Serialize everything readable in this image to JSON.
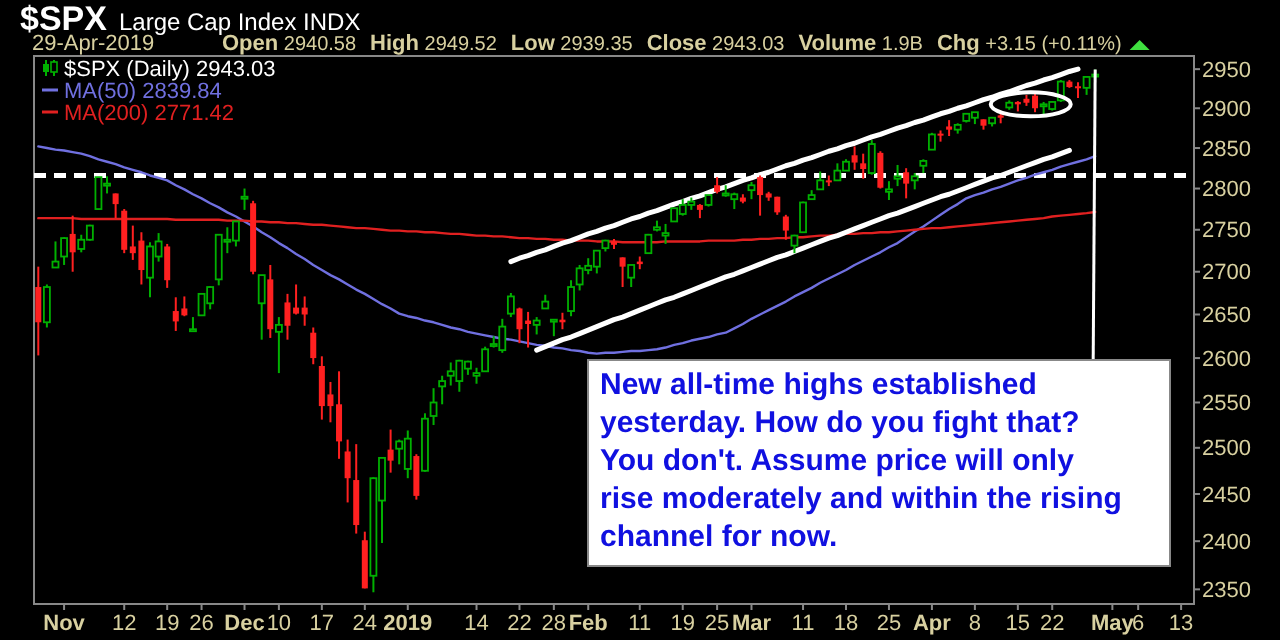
{
  "chart_data": {
    "type": "candlestick",
    "title": "$SPX",
    "subtitle": "Large Cap Index INDX",
    "annotations": [
      "29-Apr-2019",
      "Open 2940.58",
      "High 2949.52",
      "Low 2939.35",
      "Close 2943.03",
      "Volume 1.9B",
      "Chg +3.15 (+0.11%)",
      "New all-time highs established yesterday. How do you fight that? You don't. Assume price will only rise moderately and within the rising channel for now."
    ],
    "log": true,
    "legend": "top left",
    "grid": false,
    "categories": [
      null,
      null,
      null,
      "Nov",
      null,
      null,
      null,
      null,
      null,
      null,
      "12",
      null,
      null,
      null,
      null,
      "19",
      null,
      null,
      null,
      "26",
      null,
      null,
      null,
      null,
      "Dec",
      null,
      null,
      null,
      "10",
      null,
      null,
      null,
      null,
      "17",
      null,
      null,
      null,
      null,
      "24",
      null,
      null,
      null,
      null,
      "2019",
      null,
      null,
      null,
      null,
      null,
      null,
      null,
      "14",
      null,
      null,
      null,
      null,
      "22",
      null,
      null,
      null,
      "28",
      null,
      null,
      null,
      "Feb",
      null,
      null,
      null,
      null,
      null,
      "11",
      null,
      null,
      null,
      null,
      "19",
      null,
      null,
      null,
      "25",
      null,
      null,
      null,
      "Mar",
      null,
      null,
      null,
      null,
      null,
      "11",
      null,
      null,
      null,
      null,
      "18",
      null,
      null,
      null,
      null,
      "25",
      null,
      null,
      null,
      null,
      "Apr",
      null,
      null,
      null,
      null,
      "8",
      null,
      null,
      null,
      null,
      "15",
      null,
      null,
      null,
      "22",
      null,
      null,
      null,
      null,
      null,
      null,
      "May",
      null,
      null,
      "6",
      null,
      null,
      null,
      null,
      "13",
      null
    ],
    "ylim": [
      2335,
      2967
    ],
    "yticks": [
      2350,
      2400,
      2450,
      2500,
      2550,
      2600,
      2650,
      2700,
      2750,
      2800,
      2850,
      2900,
      2950
    ],
    "ref_lines": [
      {
        "axis": "y",
        "value": 2816,
        "color": "#ffffff",
        "line_style": "dashed"
      }
    ],
    "series": [
      {
        "name": "$SPX (Daily) 2943.03",
        "ohlc": [
          [
            2682,
            2706,
            2603,
            2641
          ],
          [
            2641,
            2685,
            2635,
            2682
          ],
          [
            2705,
            2736,
            2705,
            2712
          ],
          [
            2718,
            2741,
            2708,
            2740
          ],
          [
            2745,
            2767,
            2700,
            2723
          ],
          [
            2727,
            2744,
            2723,
            2738
          ],
          [
            2738,
            2756,
            2737,
            2755
          ],
          [
            2775,
            2814,
            2774,
            2814
          ],
          [
            2806,
            2815,
            2794,
            2806
          ],
          [
            2794,
            2794,
            2764,
            2781
          ],
          [
            2773,
            2775,
            2722,
            2726
          ],
          [
            2730,
            2755,
            2714,
            2722
          ],
          [
            2737,
            2747,
            2685,
            2702
          ],
          [
            2693,
            2735,
            2670,
            2730
          ],
          [
            2718,
            2746,
            2712,
            2736
          ],
          [
            2730,
            2733,
            2681,
            2690
          ],
          [
            2654,
            2670,
            2631,
            2642
          ],
          [
            2657,
            2671,
            2648,
            2649
          ],
          [
            2633,
            2647,
            2631,
            2633
          ],
          [
            2649,
            2675,
            2649,
            2674
          ],
          [
            2663,
            2683,
            2656,
            2682
          ],
          [
            2691,
            2744,
            2684,
            2744
          ],
          [
            2736,
            2753,
            2722,
            2738
          ],
          [
            2737,
            2760,
            2730,
            2760
          ],
          [
            2790,
            2800,
            2774,
            2790
          ],
          [
            2782,
            2785,
            2697,
            2700
          ],
          [
            2663,
            2696,
            2621,
            2696
          ],
          [
            2691,
            2708,
            2623,
            2633
          ],
          [
            2630,
            2647,
            2583,
            2638
          ],
          [
            2664,
            2674,
            2621,
            2637
          ],
          [
            2658,
            2685,
            2650,
            2651
          ],
          [
            2658,
            2671,
            2637,
            2650
          ],
          [
            2629,
            2635,
            2593,
            2600
          ],
          [
            2591,
            2602,
            2531,
            2546
          ],
          [
            2559,
            2573,
            2528,
            2546
          ],
          [
            2548,
            2585,
            2488,
            2507
          ],
          [
            2496,
            2509,
            2441,
            2467
          ],
          [
            2465,
            2504,
            2408,
            2417
          ],
          [
            2401,
            2410,
            2351,
            2351
          ],
          [
            2364,
            2468,
            2347,
            2467
          ],
          [
            2443,
            2489,
            2398,
            2489
          ],
          [
            2498,
            2520,
            2473,
            2486
          ],
          [
            2499,
            2509,
            2482,
            2507
          ],
          [
            2477,
            2519,
            2467,
            2510
          ],
          [
            2491,
            2493,
            2444,
            2448
          ],
          [
            2475,
            2538,
            2474,
            2532
          ],
          [
            2535,
            2566,
            2525,
            2550
          ],
          [
            2568,
            2580,
            2548,
            2574
          ],
          [
            2580,
            2595,
            2569,
            2585
          ],
          [
            2574,
            2598,
            2562,
            2597
          ],
          [
            2588,
            2597,
            2581,
            2596
          ],
          [
            2580,
            2589,
            2571,
            2583
          ],
          [
            2585,
            2613,
            2585,
            2610
          ],
          [
            2614,
            2625,
            2612,
            2616
          ],
          [
            2609,
            2645,
            2606,
            2636
          ],
          [
            2651,
            2675,
            2647,
            2671
          ],
          [
            2657,
            2658,
            2617,
            2633
          ],
          [
            2643,
            2653,
            2612,
            2639
          ],
          [
            2638,
            2647,
            2627,
            2643
          ],
          [
            2657,
            2673,
            2657,
            2665
          ],
          [
            2644,
            2644,
            2625,
            2644
          ],
          [
            2644,
            2652,
            2633,
            2641
          ],
          [
            2654,
            2690,
            2648,
            2682
          ],
          [
            2685,
            2708,
            2678,
            2704
          ],
          [
            2702,
            2716,
            2697,
            2707
          ],
          [
            2706,
            2725,
            2698,
            2725
          ],
          [
            2728,
            2738,
            2724,
            2737
          ],
          [
            2736,
            2739,
            2727,
            2732
          ],
          [
            2717,
            2717,
            2682,
            2706
          ],
          [
            2693,
            2708,
            2682,
            2708
          ],
          [
            2712,
            2718,
            2703,
            2709
          ],
          [
            2722,
            2745,
            2722,
            2744
          ],
          [
            2750,
            2761,
            2748,
            2753
          ],
          [
            2743,
            2757,
            2733,
            2746
          ],
          [
            2760,
            2776,
            2760,
            2776
          ],
          [
            2769,
            2787,
            2767,
            2780
          ],
          [
            2780,
            2789,
            2774,
            2784
          ],
          [
            2780,
            2781,
            2764,
            2774
          ],
          [
            2780,
            2792,
            2778,
            2792
          ],
          [
            2804,
            2814,
            2794,
            2796
          ],
          [
            2793,
            2804,
            2790,
            2794
          ],
          [
            2787,
            2795,
            2775,
            2793
          ],
          [
            2789,
            2793,
            2782,
            2784
          ],
          [
            2798,
            2808,
            2787,
            2804
          ],
          [
            2814,
            2816,
            2767,
            2792
          ],
          [
            2794,
            2796,
            2785,
            2789
          ],
          [
            2790,
            2790,
            2768,
            2771
          ],
          [
            2766,
            2768,
            2738,
            2749
          ],
          [
            2731,
            2744,
            2722,
            2743
          ],
          [
            2747,
            2784,
            2747,
            2783
          ],
          [
            2787,
            2798,
            2786,
            2792
          ],
          [
            2799,
            2821,
            2799,
            2810
          ],
          [
            2810,
            2816,
            2803,
            2808
          ],
          [
            2810,
            2831,
            2810,
            2822
          ],
          [
            2822,
            2836,
            2822,
            2833
          ],
          [
            2841,
            2852,
            2823,
            2832
          ],
          [
            2831,
            2843,
            2812,
            2824
          ],
          [
            2819,
            2860,
            2817,
            2855
          ],
          [
            2844,
            2846,
            2800,
            2801
          ],
          [
            2796,
            2809,
            2786,
            2799
          ],
          [
            2812,
            2829,
            2803,
            2815
          ],
          [
            2820,
            2825,
            2788,
            2806
          ],
          [
            2810,
            2819,
            2799,
            2815
          ],
          [
            2828,
            2836,
            2819,
            2834
          ],
          [
            2848,
            2869,
            2848,
            2867
          ],
          [
            2868,
            2872,
            2858,
            2867
          ],
          [
            2877,
            2885,
            2865,
            2873
          ],
          [
            2873,
            2881,
            2868,
            2879
          ],
          [
            2884,
            2893,
            2882,
            2893
          ],
          [
            2888,
            2895,
            2880,
            2895
          ],
          [
            2886,
            2886,
            2873,
            2878
          ],
          [
            2881,
            2889,
            2877,
            2888
          ],
          [
            2891,
            2893,
            2881,
            2888
          ],
          [
            2901,
            2910,
            2898,
            2907
          ],
          [
            2908,
            2909,
            2896,
            2905
          ],
          [
            2912,
            2917,
            2903,
            2907
          ],
          [
            2916,
            2922,
            2895,
            2900
          ],
          [
            2904,
            2908,
            2892,
            2905
          ],
          [
            2899,
            2909,
            2897,
            2908
          ],
          [
            2910,
            2936,
            2908,
            2934
          ],
          [
            2934,
            2936,
            2926,
            2927
          ],
          [
            2928,
            2933,
            2913,
            2926
          ],
          [
            2926,
            2940,
            2917,
            2940
          ],
          [
            2940.58,
            2949.52,
            2939.35,
            2943.03
          ],
          null,
          null,
          null,
          null,
          null,
          null,
          null,
          null,
          null,
          null,
          null
        ]
      },
      {
        "name": "MA(50) 2839.84",
        "type": "line",
        "color": "#7070e0",
        "values": [
          2852,
          2850,
          2848,
          2847,
          2845,
          2843,
          2840,
          2836,
          2833,
          2830,
          2826,
          2823,
          2820,
          2816,
          2813,
          2810,
          2804,
          2799,
          2793,
          2788,
          2782,
          2777,
          2771,
          2766,
          2760,
          2754,
          2747,
          2741,
          2734,
          2728,
          2721,
          2715,
          2708,
          2702,
          2696,
          2691,
          2685,
          2679,
          2674,
          2668,
          2662,
          2657,
          2651,
          2648,
          2646,
          2643,
          2641,
          2638,
          2635,
          2633,
          2630,
          2628,
          2626,
          2624,
          2622,
          2621,
          2619,
          2617,
          2615,
          2614,
          2612,
          2611,
          2609,
          2608,
          2606,
          2605,
          2606,
          2606,
          2607,
          2608,
          2608,
          2609,
          2610,
          2612,
          2615,
          2617,
          2620,
          2622,
          2624,
          2627,
          2629,
          2634,
          2639,
          2645,
          2650,
          2655,
          2660,
          2665,
          2671,
          2676,
          2681,
          2687,
          2692,
          2697,
          2702,
          2708,
          2713,
          2718,
          2723,
          2729,
          2734,
          2741,
          2748,
          2754,
          2761,
          2768,
          2775,
          2781,
          2788,
          2792,
          2795,
          2799,
          2802,
          2806,
          2810,
          2813,
          2817,
          2820,
          2823,
          2827,
          2830,
          2833,
          2836,
          2839.84,
          null,
          null,
          null,
          null,
          null,
          null,
          null,
          null,
          null,
          null,
          null
        ]
      },
      {
        "name": "MA(200) 2771.42",
        "type": "line",
        "color": "#e02020",
        "values": [
          2764,
          2764,
          2764,
          2764,
          2764,
          2763,
          2763,
          2763,
          2763,
          2763,
          2763,
          2763,
          2763,
          2763,
          2763,
          2763,
          2762,
          2762,
          2762,
          2762,
          2762,
          2762,
          2761,
          2761,
          2761,
          2760,
          2760,
          2759,
          2759,
          2758,
          2758,
          2757,
          2756,
          2756,
          2755,
          2754,
          2753,
          2752,
          2752,
          2751,
          2750,
          2749,
          2749,
          2748,
          2748,
          2747,
          2747,
          2746,
          2745,
          2745,
          2744,
          2743,
          2743,
          2742,
          2742,
          2741,
          2740,
          2740,
          2739,
          2739,
          2738,
          2738,
          2737,
          2737,
          2737,
          2736,
          2736,
          2736,
          2735,
          2735,
          2735,
          2735,
          2735,
          2736,
          2736,
          2736,
          2736,
          2736,
          2737,
          2737,
          2737,
          2737,
          2738,
          2738,
          2739,
          2739,
          2740,
          2740,
          2741,
          2741,
          2742,
          2743,
          2743,
          2744,
          2745,
          2745,
          2746,
          2746,
          2747,
          2747,
          2748,
          2749,
          2750,
          2751,
          2752,
          2752,
          2753,
          2754,
          2755,
          2756,
          2757,
          2758,
          2759,
          2760,
          2761,
          2762,
          2763,
          2764,
          2766,
          2767,
          2768,
          2769,
          2770,
          2771.42,
          null,
          null,
          null,
          null,
          null,
          null,
          null,
          null,
          null,
          null,
          null
        ]
      },
      {
        "type": "line",
        "color": "#ffffff",
        "values": [
          null,
          null,
          null,
          null,
          null,
          null,
          null,
          null,
          null,
          null,
          null,
          null,
          null,
          null,
          null,
          null,
          null,
          null,
          null,
          null,
          null,
          null,
          null,
          null,
          null,
          null,
          null,
          null,
          null,
          null,
          null,
          null,
          null,
          null,
          null,
          null,
          null,
          null,
          null,
          null,
          null,
          null,
          null,
          null,
          null,
          null,
          null,
          null,
          null,
          null,
          null,
          null,
          null,
          null,
          null,
          2712,
          2716,
          2719,
          2723,
          2726,
          2730,
          2734,
          2737,
          2741,
          2745,
          2748,
          2752,
          2755,
          2759,
          2763,
          2766,
          2770,
          2773,
          2777,
          2781,
          2784,
          2788,
          2791,
          2795,
          2799,
          2802,
          2806,
          2810,
          2813,
          2817,
          2820,
          2824,
          2828,
          2831,
          2835,
          2838,
          2842,
          2846,
          2849,
          2853,
          2856,
          2860,
          2864,
          2867,
          2871,
          2875,
          2878,
          2882,
          2885,
          2889,
          2893,
          2896,
          2900,
          2903,
          2907,
          2911,
          2914,
          2918,
          2921,
          2925,
          2929,
          2932,
          2936,
          2939,
          2943,
          2947,
          2950,
          null,
          null,
          null,
          null,
          null,
          null,
          null,
          null,
          null,
          null,
          null,
          null,
          null
        ]
      },
      {
        "type": "line",
        "color": "#ffffff",
        "values": [
          null,
          null,
          null,
          null,
          null,
          null,
          null,
          null,
          null,
          null,
          null,
          null,
          null,
          null,
          null,
          null,
          null,
          null,
          null,
          null,
          null,
          null,
          null,
          null,
          null,
          null,
          null,
          null,
          null,
          null,
          null,
          null,
          null,
          null,
          null,
          null,
          null,
          null,
          null,
          null,
          null,
          null,
          null,
          null,
          null,
          null,
          null,
          null,
          null,
          null,
          null,
          null,
          null,
          null,
          null,
          null,
          null,
          null,
          2609,
          2613,
          2617,
          2621,
          2624,
          2628,
          2632,
          2636,
          2640,
          2644,
          2647,
          2651,
          2655,
          2659,
          2663,
          2667,
          2670,
          2674,
          2678,
          2682,
          2686,
          2690,
          2694,
          2697,
          2701,
          2705,
          2709,
          2713,
          2717,
          2720,
          2724,
          2728,
          2732,
          2736,
          2740,
          2743,
          2747,
          2751,
          2755,
          2759,
          2763,
          2767,
          2770,
          2774,
          2778,
          2782,
          2786,
          2790,
          2793,
          2797,
          2801,
          2805,
          2809,
          2813,
          2816,
          2820,
          2824,
          2828,
          2832,
          2836,
          2839,
          2843,
          2847,
          null,
          null,
          null,
          null,
          null,
          null,
          null,
          null,
          null,
          null,
          null,
          null,
          null,
          null
        ]
      }
    ]
  }
}
